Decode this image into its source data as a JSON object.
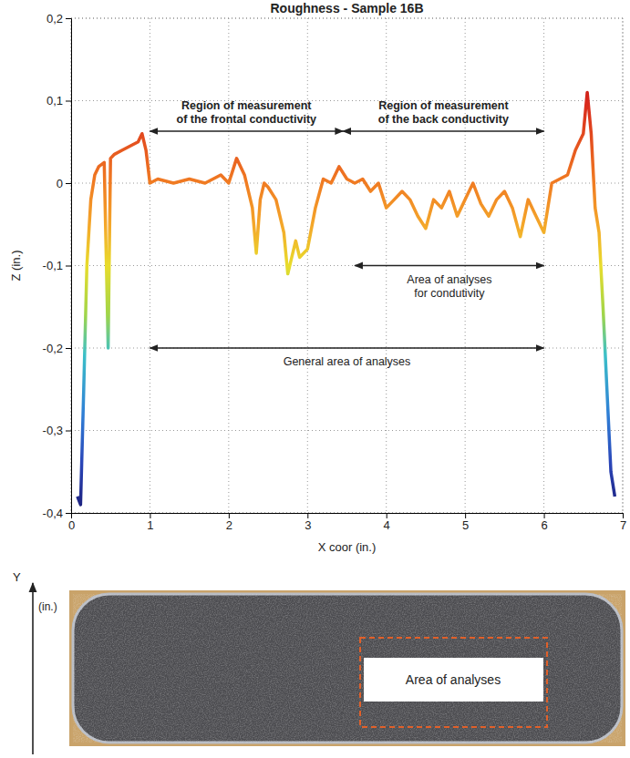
{
  "chart_data": {
    "type": "line",
    "title": "Roughness - Sample 16B",
    "x_label": "X coor (in.)",
    "y_label": "Z (in.)",
    "xlim": [
      0,
      7
    ],
    "ylim": [
      -0.4,
      0.2
    ],
    "xticks": [
      0,
      1,
      2,
      3,
      4,
      5,
      6,
      7
    ],
    "yticks": [
      {
        "value": 0.2,
        "label": "0,2"
      },
      {
        "value": 0.1,
        "label": "0,1"
      },
      0,
      {
        "value": -0.1,
        "label": "-0,1"
      },
      {
        "value": -0.2,
        "label": "-0,2"
      },
      {
        "value": -0.3,
        "label": "-0,3"
      },
      {
        "value": -0.4,
        "label": "-0,4"
      }
    ],
    "grid": true,
    "x": [
      0.08,
      0.12,
      0.16,
      0.2,
      0.25,
      0.3,
      0.35,
      0.42,
      0.47,
      0.5,
      0.55,
      0.65,
      0.75,
      0.85,
      0.9,
      0.95,
      1.0,
      1.1,
      1.3,
      1.5,
      1.7,
      1.9,
      2.0,
      2.1,
      2.2,
      2.3,
      2.35,
      2.4,
      2.45,
      2.5,
      2.6,
      2.7,
      2.75,
      2.8,
      2.85,
      2.9,
      3.0,
      3.1,
      3.2,
      3.3,
      3.4,
      3.5,
      3.6,
      3.7,
      3.8,
      3.9,
      4.0,
      4.1,
      4.2,
      4.3,
      4.4,
      4.5,
      4.6,
      4.7,
      4.8,
      4.9,
      5.0,
      5.1,
      5.2,
      5.3,
      5.4,
      5.5,
      5.6,
      5.7,
      5.8,
      5.9,
      6.0,
      6.1,
      6.2,
      6.3,
      6.4,
      6.5,
      6.55,
      6.6,
      6.65,
      6.7,
      6.75,
      6.8,
      6.85,
      6.9
    ],
    "values": [
      -0.38,
      -0.39,
      -0.25,
      -0.1,
      -0.02,
      0.01,
      0.02,
      0.025,
      -0.2,
      0.03,
      0.035,
      0.04,
      0.045,
      0.05,
      0.06,
      0.04,
      0.0,
      0.005,
      0.0,
      0.005,
      0.0,
      0.01,
      0.0,
      0.03,
      0.01,
      -0.03,
      -0.085,
      -0.02,
      0.0,
      -0.005,
      -0.02,
      -0.06,
      -0.11,
      -0.09,
      -0.07,
      -0.09,
      -0.08,
      -0.03,
      0.005,
      0.0,
      0.02,
      0.005,
      0.0,
      0.005,
      -0.01,
      0.0,
      -0.03,
      -0.02,
      -0.01,
      -0.02,
      -0.04,
      -0.055,
      -0.02,
      -0.03,
      -0.01,
      -0.04,
      -0.02,
      0.0,
      -0.025,
      -0.04,
      -0.02,
      -0.01,
      -0.03,
      -0.065,
      -0.02,
      -0.04,
      -0.06,
      0.0,
      0.005,
      0.01,
      0.04,
      0.06,
      0.11,
      0.06,
      -0.03,
      -0.06,
      -0.15,
      -0.25,
      -0.35,
      -0.38
    ],
    "annotations": [
      {
        "text": [
          "Region of measurement",
          "of the frontal conductivity"
        ],
        "x_range": [
          1,
          3.45
        ],
        "y": 0.063
      },
      {
        "text": [
          "Region of measurement",
          "of the back conductivity"
        ],
        "x_range": [
          3.45,
          6
        ],
        "y": 0.063
      },
      {
        "text": [
          "Area of analyses",
          "for condutivity"
        ],
        "x_range": [
          3.6,
          6
        ],
        "y": -0.1
      },
      {
        "text": [
          "General area of analyses"
        ],
        "x_range": [
          1,
          6
        ],
        "y": -0.2
      }
    ]
  },
  "photo": {
    "axis_title": "Y",
    "axis_unit": "(in.)",
    "label": "Area of analyses"
  }
}
